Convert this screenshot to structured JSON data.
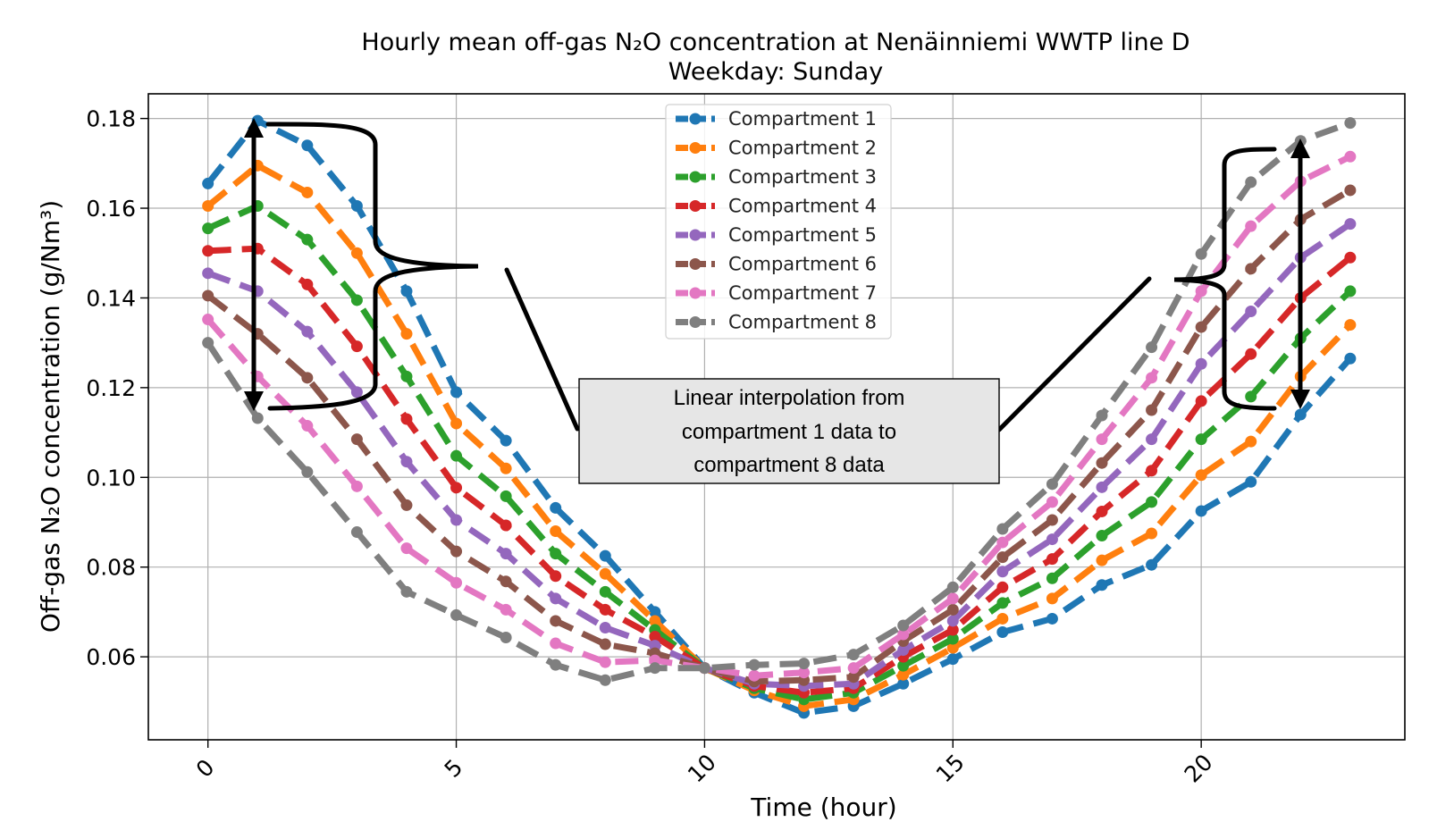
{
  "chart_data": {
    "type": "line",
    "title": "Hourly mean off-gas N₂O concentration at Nenäinniemi WWTP line D",
    "subtitle": "Weekday: Sunday",
    "xlabel": "Time (hour)",
    "ylabel": "Off-gas N₂O concentration (g/Nm³)",
    "xlim": [
      -1.2,
      24.1
    ],
    "ylim": [
      0.0415,
      0.1855
    ],
    "xticks": [
      0,
      5,
      10,
      15,
      20
    ],
    "xtick_labels": [
      "0",
      "5",
      "10",
      "15",
      "20"
    ],
    "yticks": [
      0.06,
      0.08,
      0.1,
      0.12,
      0.14,
      0.16,
      0.18
    ],
    "ytick_labels": [
      "0.06",
      "0.08",
      "0.10",
      "0.12",
      "0.14",
      "0.16",
      "0.18"
    ],
    "grid": true,
    "legend_position": "top-center",
    "x": [
      0,
      1,
      2,
      3,
      4,
      5,
      6,
      7,
      8,
      9,
      10,
      11,
      12,
      13,
      14,
      15,
      16,
      17,
      18,
      19,
      20,
      21,
      22,
      23
    ],
    "series": [
      {
        "name": "Compartment 1",
        "color": "#1f77b4",
        "values": [
          0.1655,
          0.1795,
          0.174,
          0.1605,
          0.1415,
          0.119,
          0.1082,
          0.0932,
          0.0825,
          0.07,
          0.0575,
          0.052,
          0.0475,
          0.049,
          0.054,
          0.0595,
          0.0655,
          0.0685,
          0.076,
          0.0805,
          0.0925,
          0.099,
          0.114,
          0.1265
        ]
      },
      {
        "name": "Compartment 2",
        "color": "#ff7f0e",
        "values": [
          0.1605,
          0.1695,
          0.1635,
          0.15,
          0.132,
          0.112,
          0.102,
          0.088,
          0.0785,
          0.068,
          0.0575,
          0.0525,
          0.049,
          0.0505,
          0.056,
          0.062,
          0.0685,
          0.073,
          0.0815,
          0.0875,
          0.1005,
          0.108,
          0.1225,
          0.134
        ]
      },
      {
        "name": "Compartment 3",
        "color": "#2ca02c",
        "values": [
          0.1555,
          0.1605,
          0.153,
          0.1395,
          0.1225,
          0.1048,
          0.0958,
          0.083,
          0.0745,
          0.066,
          0.0575,
          0.053,
          0.0505,
          0.052,
          0.058,
          0.064,
          0.072,
          0.0775,
          0.087,
          0.0945,
          0.1085,
          0.118,
          0.131,
          0.1415
        ]
      },
      {
        "name": "Compartment 4",
        "color": "#d62728",
        "values": [
          0.1505,
          0.151,
          0.143,
          0.1292,
          0.113,
          0.0977,
          0.0893,
          0.078,
          0.0705,
          0.0645,
          0.0575,
          0.0535,
          0.052,
          0.053,
          0.06,
          0.066,
          0.0755,
          0.0818,
          0.0924,
          0.1015,
          0.117,
          0.1275,
          0.14,
          0.149
        ]
      },
      {
        "name": "Compartment 5",
        "color": "#9467bd",
        "values": [
          0.1455,
          0.1415,
          0.1325,
          0.119,
          0.1035,
          0.0905,
          0.083,
          0.073,
          0.0665,
          0.0625,
          0.0575,
          0.054,
          0.0535,
          0.054,
          0.0615,
          0.068,
          0.079,
          0.0862,
          0.0978,
          0.1085,
          0.1253,
          0.137,
          0.149,
          0.1565
        ]
      },
      {
        "name": "Compartment 6",
        "color": "#8c564b",
        "values": [
          0.1405,
          0.132,
          0.1222,
          0.1085,
          0.0938,
          0.0835,
          0.0768,
          0.068,
          0.0628,
          0.0608,
          0.0575,
          0.0545,
          0.0548,
          0.0555,
          0.0635,
          0.0705,
          0.0822,
          0.0905,
          0.1032,
          0.115,
          0.1335,
          0.1465,
          0.1575,
          0.164
        ]
      },
      {
        "name": "Compartment 7",
        "color": "#e377c2",
        "values": [
          0.1352,
          0.1225,
          0.1115,
          0.098,
          0.0842,
          0.0765,
          0.0705,
          0.063,
          0.0588,
          0.0592,
          0.0575,
          0.0558,
          0.0565,
          0.0575,
          0.065,
          0.073,
          0.0855,
          0.0945,
          0.1085,
          0.1222,
          0.1415,
          0.156,
          0.166,
          0.1715
        ]
      },
      {
        "name": "Compartment 8",
        "color": "#7f7f7f",
        "values": [
          0.13,
          0.1132,
          0.1012,
          0.0878,
          0.0745,
          0.0693,
          0.0643,
          0.0582,
          0.0548,
          0.0575,
          0.0575,
          0.0582,
          0.0585,
          0.0605,
          0.067,
          0.0755,
          0.0885,
          0.0985,
          0.1138,
          0.129,
          0.1498,
          0.1658,
          0.175,
          0.179
        ]
      }
    ],
    "annotation_text": [
      "Linear interpolation from",
      "compartment 1 data to",
      "compartment 8 data"
    ]
  }
}
